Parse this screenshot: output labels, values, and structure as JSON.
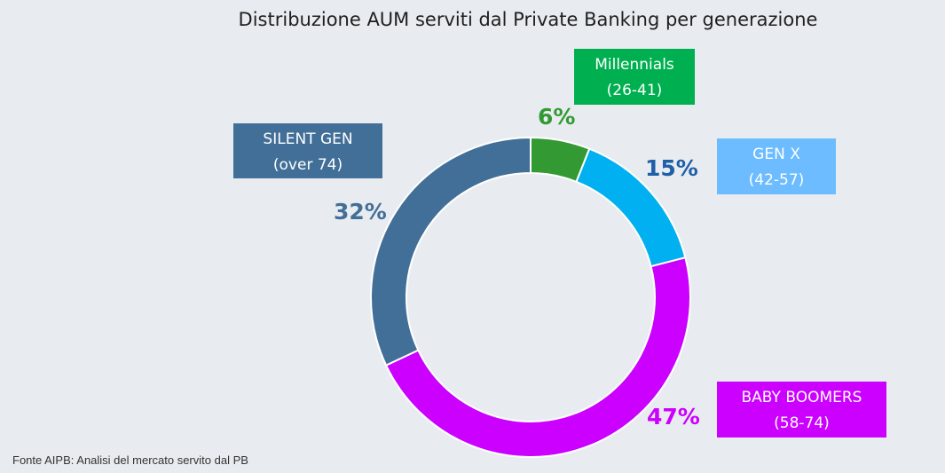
{
  "chart_data": {
    "type": "pie",
    "title": "Distribuzione AUM serviti dal Private Banking per generazione",
    "series": [
      {
        "name": "Millennials",
        "range": "(26-41)",
        "value": 6,
        "value_label": "6%",
        "color": "#339933",
        "box_color": "#00b050",
        "pct_color": "#339933"
      },
      {
        "name": "GEN X",
        "range": "(42-57)",
        "value": 15,
        "value_label": "15%",
        "color": "#00b0f0",
        "box_color": "#6cbcff",
        "pct_color": "#1f5fa8"
      },
      {
        "name": "BABY BOOMERS",
        "range": "(58-74)",
        "value": 47,
        "value_label": "47%",
        "color": "#cc00ff",
        "box_color": "#cc00ff",
        "pct_color": "#cc00ff"
      },
      {
        "name": "SILENT GEN",
        "range": "(over 74)",
        "value": 32,
        "value_label": "32%",
        "color": "#426f98",
        "box_color": "#426f98",
        "pct_color": "#426f98"
      }
    ]
  },
  "source": "Fonte AIPB: Analisi del mercato servito dal PB"
}
